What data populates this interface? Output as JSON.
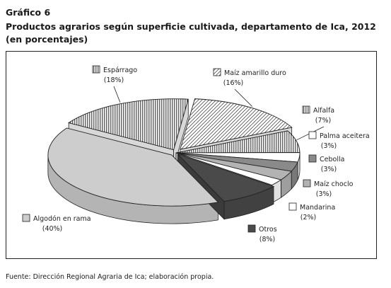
{
  "header": {
    "chart_number": "Gráfico 6",
    "title": "Productos agrarios según superficie cultivada, departamento de Ica, 2012",
    "subtitle": "(en porcentajes)"
  },
  "footer": {
    "source": "Fuente: Dirección Regional Agraria de Ica; elaboración propia."
  },
  "chart_data": {
    "type": "pie",
    "style": "3d-exploded",
    "unit": "%",
    "slices": [
      {
        "name": "Espárrago",
        "value": 18,
        "label": "(18%)",
        "pattern": "vertical-stripes",
        "color": "#ffffff"
      },
      {
        "name": "Maíz amarillo duro",
        "value": 16,
        "label": "(16%)",
        "pattern": "diagonal-hatch",
        "color": "#ffffff"
      },
      {
        "name": "Alfalfa",
        "value": 7,
        "label": "(7%)",
        "pattern": "vertical-stripes",
        "color": "#ffffff"
      },
      {
        "name": "Palma aceitera",
        "value": 3,
        "label": "(3%)",
        "pattern": "solid",
        "color": "#ffffff"
      },
      {
        "name": "Cebolla",
        "value": 3,
        "label": "(3%)",
        "pattern": "solid",
        "color": "#8a8a8a"
      },
      {
        "name": "Maíz choclo",
        "value": 3,
        "label": "(3%)",
        "pattern": "solid",
        "color": "#b3b3b3"
      },
      {
        "name": "Mandarina",
        "value": 2,
        "label": "(2%)",
        "pattern": "solid",
        "color": "#ffffff"
      },
      {
        "name": "Otros",
        "value": 8,
        "label": "(8%)",
        "pattern": "solid",
        "color": "#4a4a4a"
      },
      {
        "name": "Algodón en rama",
        "value": 40,
        "label": "(40%)",
        "pattern": "solid",
        "color": "#cdcdcd"
      }
    ]
  }
}
